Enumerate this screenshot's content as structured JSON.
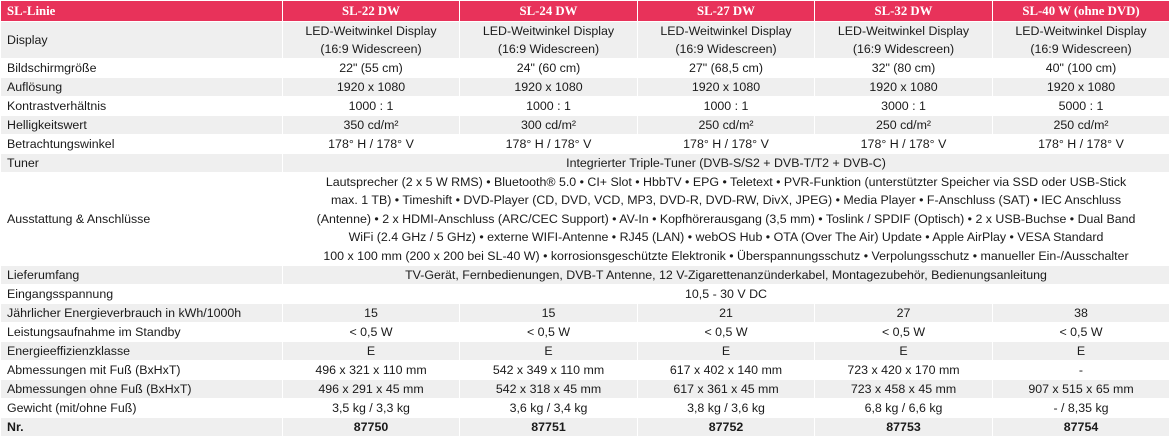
{
  "header": {
    "line_label": "SL-Linie",
    "models": [
      "SL-22 DW",
      "SL-24 DW",
      "SL-27 DW",
      "SL-32 DW",
      "SL-40 W (ohne DVD)"
    ]
  },
  "rows": {
    "display": {
      "label": "Display",
      "values": [
        [
          "LED-Weitwinkel Display",
          "(16:9 Widescreen)"
        ],
        [
          "LED-Weitwinkel Display",
          "(16:9 Widescreen)"
        ],
        [
          "LED-Weitwinkel Display",
          "(16:9 Widescreen)"
        ],
        [
          "LED-Weitwinkel Display",
          "(16:9 Widescreen)"
        ],
        [
          "LED-Weitwinkel Display",
          "(16:9 Widescreen)"
        ]
      ]
    },
    "screen_size": {
      "label": "Bildschirmgröße",
      "values": [
        "22\" (55 cm)",
        "24\" (60 cm)",
        "27\" (68,5 cm)",
        "32\" (80 cm)",
        "40\" (100 cm)"
      ]
    },
    "resolution": {
      "label": "Auflösung",
      "values": [
        "1920 x 1080",
        "1920 x 1080",
        "1920 x 1080",
        "1920 x 1080",
        "1920 x 1080"
      ]
    },
    "contrast": {
      "label": "Kontrastverhältnis",
      "values": [
        "1000 : 1",
        "1000 : 1",
        "1000 : 1",
        "3000 : 1",
        "5000 : 1"
      ]
    },
    "brightness": {
      "label": "Helligkeitswert",
      "values": [
        "350 cd/m²",
        "300 cd/m²",
        "250 cd/m²",
        "250 cd/m²",
        "250 cd/m²"
      ]
    },
    "viewing_angle": {
      "label": "Betrachtungswinkel",
      "values": [
        "178° H / 178° V",
        "178° H / 178° V",
        "178° H / 178° V",
        "178° H / 178° V",
        "178° H / 178° V"
      ]
    },
    "tuner": {
      "label": "Tuner",
      "value": "Integrierter Triple-Tuner (DVB-S/S2 + DVB-T/T2 + DVB-C)"
    },
    "equipment": {
      "label": "Ausstattung & Anschlüsse",
      "lines": [
        "Lautsprecher (2 x 5 W RMS) • Bluetooth® 5.0 • CI+ Slot • HbbTV • EPG • Teletext • PVR-Funktion (unterstützter Speicher via SSD oder USB-Stick",
        "max. 1 TB) • Timeshift • DVD-Player (CD, DVD, VCD, MP3, DVD-R, DVD-RW, DivX, JPEG) • Media Player • F-Anschluss (SAT) • IEC Anschluss",
        "(Antenne) • 2 x HDMI-Anschluss (ARC/CEC Support) • AV-In • Kopfhörerausgang (3,5 mm) • Toslink / SPDIF (Optisch) • 2 x USB-Buchse • Dual Band",
        "WiFi (2.4 GHz / 5 GHz) • externe WIFI-Antenne • RJ45 (LAN) • webOS Hub • OTA (Over The Air) Update • Apple AirPlay • VESA Standard",
        "100 x 100 mm (200 x 200 bei SL-40 W) • korrosionsgeschützte Elektronik • Überspannungsschutz • Verpolungsschutz • manueller Ein-/Ausschalter"
      ]
    },
    "delivery": {
      "label": "Lieferumfang",
      "value": "TV-Gerät, Fernbedienungen, DVB-T Antenne, 12 V-Zigarettenanzünderkabel, Montagezubehör, Bedienungsanleitung"
    },
    "input_voltage": {
      "label": "Eingangsspannung",
      "value": "10,5 - 30 V DC"
    },
    "annual_energy": {
      "label": "Jährlicher Energieverbrauch in kWh/1000h",
      "values": [
        "15",
        "15",
        "21",
        "27",
        "38"
      ]
    },
    "standby_power": {
      "label": "Leistungsaufnahme im Standby",
      "values": [
        "< 0,5 W",
        "< 0,5 W",
        "< 0,5 W",
        "< 0,5 W",
        "< 0,5 W"
      ]
    },
    "energy_class": {
      "label": "Energieeffizienzklasse",
      "values": [
        "E",
        "E",
        "E",
        "E",
        "E"
      ]
    },
    "dims_with_stand": {
      "label": "Abmessungen mit Fuß (BxHxT)",
      "values": [
        "496 x 321 x 110 mm",
        "542 x 349 x 110 mm",
        "617 x 402 x 140 mm",
        "723 x 420 x 170 mm",
        "-"
      ]
    },
    "dims_without_stand": {
      "label": "Abmessungen ohne Fuß (BxHxT)",
      "values": [
        "496 x 291 x 45 mm",
        "542 x 318 x 45 mm",
        "617 x 361 x 45 mm",
        "723 x 458 x 45 mm",
        "907 x 515 x 65 mm"
      ]
    },
    "weight": {
      "label": "Gewicht (mit/ohne Fuß)",
      "values": [
        "3,5 kg / 3,3 kg",
        "3,6 kg / 3,4 kg",
        "3,8 kg / 3,6 kg",
        "6,8 kg / 6,6 kg",
        "- / 8,35 kg"
      ]
    },
    "article_nr": {
      "label": "Nr.",
      "values": [
        "87750",
        "87751",
        "87752",
        "87753",
        "87754"
      ]
    }
  }
}
